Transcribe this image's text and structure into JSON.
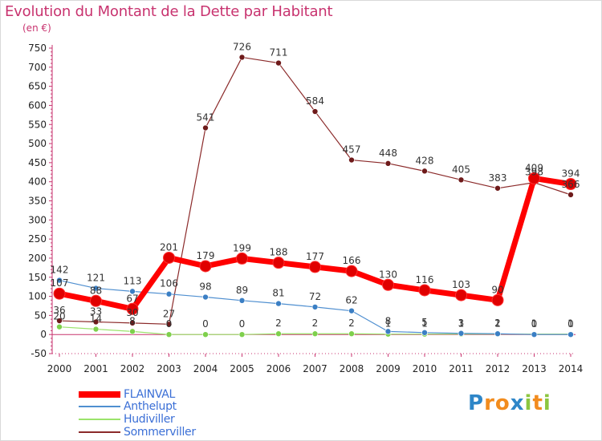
{
  "header": {
    "title": "Evolution du Montant de la Dette par Habitant",
    "subtitle": "(en €)"
  },
  "brand": {
    "letters": [
      "P",
      "r",
      "o",
      "x",
      "i",
      "t",
      "i"
    ],
    "letter_colors": [
      "#2e86c8",
      "#f28c1e",
      "#f28c1e",
      "#2e86c8",
      "#8cc63f",
      "#f28c1e",
      "#8cc63f"
    ]
  },
  "chart_data": {
    "type": "line",
    "x": [
      "2000",
      "2001",
      "2002",
      "2003",
      "2004",
      "2005",
      "2006",
      "2007",
      "2008",
      "2009",
      "2010",
      "2011",
      "2012",
      "2013",
      "2014"
    ],
    "ylim": [
      -50,
      750
    ],
    "yticks": [
      -50,
      0,
      50,
      100,
      150,
      200,
      250,
      300,
      350,
      400,
      450,
      500,
      550,
      600,
      650,
      700,
      750
    ],
    "grid": false,
    "legend_position": "bottom-left",
    "series": [
      {
        "name": "FLAINVAL",
        "color": "#ff0000",
        "marker_color": "#e00000",
        "stroke_width": 7,
        "marker_radius": 7,
        "values": [
          107,
          88,
          67,
          201,
          179,
          199,
          188,
          177,
          166,
          130,
          116,
          103,
          90,
          409,
          394
        ],
        "labels": [
          "107",
          "88",
          "67",
          "201",
          "179",
          "199",
          "188",
          "177",
          "166",
          "130",
          "116",
          "103",
          "90",
          "409",
          "394"
        ]
      },
      {
        "name": "Anthelupt",
        "color": "#4f8fd0",
        "marker_color": "#3b7fc4",
        "stroke_width": 1.2,
        "marker_radius": 3.5,
        "values": [
          142,
          121,
          113,
          106,
          98,
          89,
          81,
          72,
          62,
          8,
          5,
          3,
          2,
          0,
          0
        ],
        "labels": [
          "142",
          "121",
          "113",
          "106",
          "98",
          "89",
          "81",
          "72",
          "62",
          "8",
          "5",
          "3",
          "2",
          "0",
          "0"
        ]
      },
      {
        "name": "Hudiviller",
        "color": "#9be36b",
        "marker_color": "#7ed04c",
        "stroke_width": 1.2,
        "marker_radius": 3.5,
        "values": [
          20,
          14,
          8,
          0,
          0,
          0,
          2,
          2,
          2,
          1,
          1,
          1,
          1,
          1,
          1
        ],
        "labels": [
          "20",
          "14",
          "8",
          "0",
          "0",
          "0",
          "2",
          "2",
          "2",
          "1",
          "1",
          "1",
          "1",
          "1",
          "1"
        ]
      },
      {
        "name": "Sommerviller",
        "color": "#8b2a2a",
        "marker_color": "#6e1a1a",
        "stroke_width": 1.2,
        "marker_radius": 3.5,
        "values": [
          36,
          33,
          30,
          27,
          541,
          726,
          711,
          584,
          457,
          448,
          428,
          405,
          383,
          398,
          366
        ],
        "labels": [
          "36",
          "33",
          "30",
          "27",
          "541",
          "726",
          "711",
          "584",
          "457",
          "448",
          "428",
          "405",
          "383",
          "398",
          "366"
        ]
      }
    ]
  }
}
